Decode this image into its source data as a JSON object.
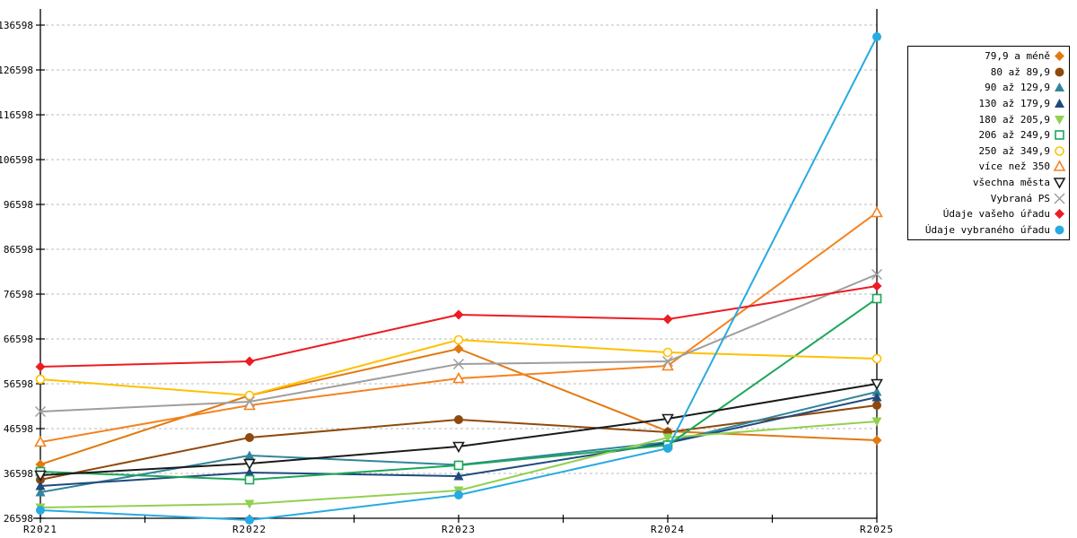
{
  "chart_data": {
    "type": "line",
    "title": "",
    "xlabel": "",
    "ylabel": "",
    "x_labels": [
      "R2021",
      "R2022",
      "R2023",
      "R2024",
      "R2025"
    ],
    "y_axis": {
      "min": 26598,
      "max": 136598,
      "step": 10000,
      "tick_labels": [
        "26598",
        "36598",
        "46598",
        "56598",
        "66598",
        "76598",
        "86598",
        "96598",
        "106598",
        "116598",
        "126598",
        "136598"
      ]
    },
    "grid": "horizontal-dashed",
    "legend_position": "right",
    "series": [
      {
        "name": "79,9 a méně",
        "color": "#E2790F",
        "marker": "diamond",
        "fill": true,
        "values": [
          38600,
          54000,
          64400,
          46000,
          44000
        ]
      },
      {
        "name": "80 až 89,9",
        "color": "#8E4A0D",
        "marker": "circle",
        "fill": true,
        "values": [
          35200,
          44600,
          48600,
          45800,
          51800
        ]
      },
      {
        "name": "90 až 129,9",
        "color": "#31859C",
        "marker": "triangle-up",
        "fill": true,
        "values": [
          32400,
          40600,
          38500,
          43600,
          54800
        ]
      },
      {
        "name": "130 až 179,9",
        "color": "#1F497D",
        "marker": "triangle-up",
        "fill": true,
        "values": [
          33800,
          36800,
          36000,
          43400,
          53600
        ]
      },
      {
        "name": "180 až 205,9",
        "color": "#92D050",
        "marker": "triangle-down",
        "fill": true,
        "values": [
          29000,
          29800,
          32800,
          44600,
          48200
        ]
      },
      {
        "name": "206 až 249,9",
        "color": "#1CA659",
        "marker": "square",
        "fill": false,
        "values": [
          37000,
          35200,
          38400,
          42900,
          75600
        ]
      },
      {
        "name": "250 až 349,9",
        "color": "#FFC000",
        "marker": "circle",
        "fill": false,
        "values": [
          57600,
          54000,
          66400,
          63600,
          62200
        ]
      },
      {
        "name": "více než 350",
        "color": "#F5821F",
        "marker": "triangle-up",
        "fill": false,
        "values": [
          43600,
          51800,
          57800,
          60600,
          94800
        ]
      },
      {
        "name": "všechna města",
        "color": "#1A1A1A",
        "marker": "triangle-down",
        "fill": false,
        "values": [
          36200,
          38800,
          42600,
          48800,
          56600
        ]
      },
      {
        "name": "Vybraná PS",
        "color": "#9E9E9E",
        "marker": "x",
        "fill": false,
        "values": [
          50400,
          52600,
          61000,
          61600,
          81000
        ]
      },
      {
        "name": "Údaje vašeho úřadu",
        "color": "#EC1C24",
        "marker": "diamond",
        "fill": true,
        "values": [
          60400,
          61600,
          72000,
          71000,
          78400
        ]
      },
      {
        "name": "Údaje vybraného úřadu",
        "color": "#27AAE1",
        "marker": "circle",
        "fill": true,
        "values": [
          28400,
          26200,
          31800,
          42200,
          134000
        ]
      }
    ]
  },
  "colors": {
    "background": "#FFFFFF",
    "grid": "#BBBBBB",
    "axis": "#000000",
    "tick_text": "#000000",
    "legend_border": "#000000"
  }
}
